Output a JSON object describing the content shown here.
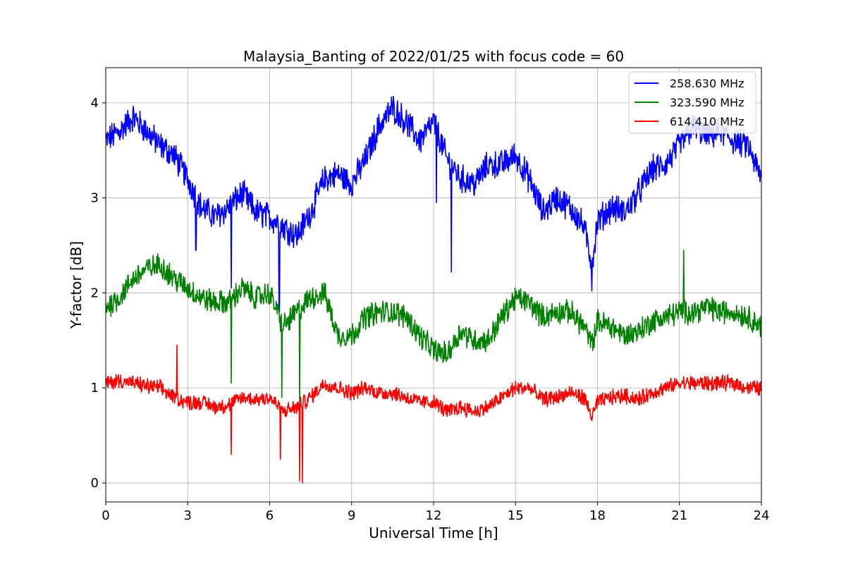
{
  "chart_data": {
    "type": "line",
    "title": "Malaysia_Banting of 2022/01/25 with focus code = 60",
    "xlabel": "Universal Time [h]",
    "ylabel": "Y-factor [dB]",
    "xlim": [
      0,
      24
    ],
    "ylim": [
      -0.2,
      4.37
    ],
    "xticks": [
      0,
      3,
      6,
      9,
      12,
      15,
      18,
      21,
      24
    ],
    "yticks": [
      0,
      1,
      2,
      3,
      4
    ],
    "grid": true,
    "legend_position": "top-right",
    "series": [
      {
        "name": "258.630 MHz",
        "color": "#0000ff",
        "x": [
          0,
          0.5,
          1.0,
          1.5,
          2.0,
          2.5,
          3.0,
          3.5,
          4.0,
          4.5,
          5.0,
          5.5,
          6.0,
          6.5,
          7.0,
          7.5,
          8.0,
          8.5,
          9.0,
          9.5,
          10.0,
          10.5,
          11.0,
          11.5,
          12.0,
          12.5,
          13.0,
          13.5,
          14.0,
          14.5,
          15.0,
          15.5,
          16.0,
          16.5,
          17.0,
          17.5,
          17.8,
          18.0,
          18.5,
          19.0,
          19.5,
          20.0,
          20.5,
          21.0,
          21.5,
          22.0,
          22.5,
          23.0,
          23.5,
          24.0
        ],
        "y": [
          3.6,
          3.7,
          3.85,
          3.7,
          3.55,
          3.45,
          3.2,
          2.9,
          2.8,
          2.9,
          3.05,
          2.85,
          2.8,
          2.7,
          2.6,
          2.85,
          3.2,
          3.25,
          3.15,
          3.4,
          3.75,
          3.95,
          3.8,
          3.6,
          3.8,
          3.4,
          3.2,
          3.15,
          3.35,
          3.35,
          3.45,
          3.2,
          2.85,
          3.0,
          2.9,
          2.7,
          2.3,
          2.75,
          2.9,
          2.85,
          3.05,
          3.3,
          3.35,
          3.55,
          3.75,
          3.65,
          3.7,
          3.6,
          3.55,
          3.2
        ],
        "noise": 0.13
      },
      {
        "name": "323.590 MHz",
        "color": "#008000",
        "x": [
          0,
          0.5,
          1.0,
          1.5,
          2.0,
          2.5,
          3.0,
          3.5,
          4.0,
          4.5,
          5.0,
          5.5,
          6.0,
          6.5,
          7.0,
          7.5,
          8.0,
          8.5,
          9.0,
          9.5,
          10.0,
          10.5,
          11.0,
          11.5,
          12.0,
          12.5,
          13.0,
          13.5,
          14.0,
          14.5,
          15.0,
          15.5,
          16.0,
          16.5,
          17.0,
          17.5,
          17.8,
          18.0,
          18.5,
          19.0,
          19.5,
          20.0,
          20.5,
          21.0,
          21.5,
          22.0,
          22.5,
          23.0,
          23.5,
          24.0
        ],
        "y": [
          1.85,
          1.95,
          2.15,
          2.25,
          2.3,
          2.15,
          2.05,
          1.95,
          1.9,
          1.9,
          2.05,
          1.95,
          2.0,
          1.65,
          1.8,
          1.95,
          2.0,
          1.55,
          1.55,
          1.75,
          1.8,
          1.8,
          1.75,
          1.55,
          1.4,
          1.35,
          1.6,
          1.5,
          1.5,
          1.75,
          1.95,
          1.9,
          1.75,
          1.8,
          1.8,
          1.65,
          1.45,
          1.7,
          1.65,
          1.55,
          1.6,
          1.7,
          1.75,
          1.8,
          1.8,
          1.85,
          1.8,
          1.8,
          1.75,
          1.65
        ],
        "noise": 0.11
      },
      {
        "name": "614.410 MHz",
        "color": "#ff0000",
        "x": [
          0,
          0.5,
          1.0,
          1.5,
          2.0,
          2.5,
          3.0,
          3.5,
          4.0,
          4.5,
          5.0,
          5.5,
          6.0,
          6.5,
          7.0,
          7.5,
          8.0,
          8.5,
          9.0,
          9.5,
          10.0,
          10.5,
          11.0,
          11.5,
          12.0,
          12.5,
          13.0,
          13.5,
          14.0,
          14.5,
          15.0,
          15.5,
          16.0,
          16.5,
          17.0,
          17.5,
          17.8,
          18.0,
          18.5,
          19.0,
          19.5,
          20.0,
          20.5,
          21.0,
          21.5,
          22.0,
          22.5,
          23.0,
          23.5,
          24.0
        ],
        "y": [
          1.05,
          1.08,
          1.05,
          1.02,
          1.0,
          0.9,
          0.85,
          0.85,
          0.8,
          0.82,
          0.9,
          0.88,
          0.9,
          0.75,
          0.8,
          0.9,
          1.05,
          1.0,
          0.95,
          1.0,
          0.95,
          0.95,
          0.9,
          0.85,
          0.85,
          0.75,
          0.8,
          0.75,
          0.8,
          0.9,
          1.0,
          1.0,
          0.88,
          0.9,
          0.95,
          0.9,
          0.7,
          0.85,
          0.9,
          0.92,
          0.88,
          0.95,
          1.0,
          1.05,
          1.05,
          1.05,
          1.05,
          1.05,
          1.0,
          1.0
        ],
        "noise": 0.07
      }
    ],
    "spikes": [
      {
        "series": 0,
        "x": 3.3,
        "y": 2.45
      },
      {
        "series": 0,
        "x": 4.6,
        "y": 2.05
      },
      {
        "series": 0,
        "x": 6.35,
        "y": 1.8
      },
      {
        "series": 0,
        "x": 12.1,
        "y": 2.95
      },
      {
        "series": 0,
        "x": 12.65,
        "y": 2.22
      },
      {
        "series": 0,
        "x": 17.8,
        "y": 2.02
      },
      {
        "series": 1,
        "x": 4.6,
        "y": 1.05
      },
      {
        "series": 1,
        "x": 6.45,
        "y": 0.9
      },
      {
        "series": 1,
        "x": 7.1,
        "y": 0.85
      },
      {
        "series": 1,
        "x": 21.15,
        "y": 2.45
      },
      {
        "series": 2,
        "x": 2.6,
        "y": 1.45
      },
      {
        "series": 2,
        "x": 4.6,
        "y": 0.3
      },
      {
        "series": 2,
        "x": 6.4,
        "y": 0.25
      },
      {
        "series": 2,
        "x": 7.1,
        "y": 0.02
      },
      {
        "series": 2,
        "x": 7.2,
        "y": 0.0
      }
    ]
  }
}
